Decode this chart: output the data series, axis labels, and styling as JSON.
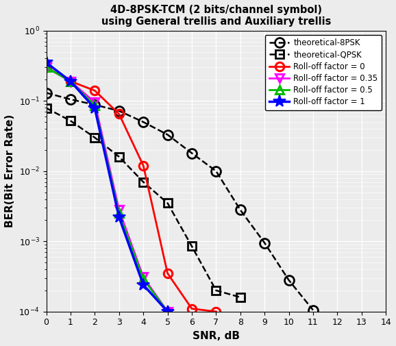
{
  "title_line1": "4D-8PSK-TCM (2 bits/channel symbol)",
  "title_line2": "using General trellis and Auxiliary trellis",
  "xlabel": "SNR, dB",
  "ylabel": "BER(Bit Error Rate)",
  "xlim": [
    0,
    14
  ],
  "theo_8psk_snr": [
    0,
    1,
    2,
    3,
    4,
    5,
    6,
    7,
    8,
    9,
    10,
    11
  ],
  "theo_8psk_ber": [
    0.13,
    0.105,
    0.088,
    0.072,
    0.05,
    0.033,
    0.018,
    0.01,
    0.0028,
    0.00095,
    0.00028,
    0.000105
  ],
  "theo_qpsk_snr": [
    0,
    1,
    2,
    3,
    4,
    5,
    6,
    7,
    8
  ],
  "theo_qpsk_ber": [
    0.079,
    0.052,
    0.03,
    0.016,
    0.007,
    0.0035,
    0.00085,
    0.0002,
    0.00016
  ],
  "rolloff0_snr": [
    0,
    1,
    2,
    3,
    4,
    5,
    6,
    7
  ],
  "rolloff0_ber": [
    0.3,
    0.19,
    0.14,
    0.065,
    0.012,
    0.00035,
    0.00011,
    0.0001
  ],
  "rolloff035_snr": [
    0,
    1,
    2,
    3,
    4,
    5
  ],
  "rolloff035_ber": [
    0.3,
    0.19,
    0.095,
    0.0028,
    0.00031,
    0.0001
  ],
  "rolloff05_snr": [
    0,
    1,
    2,
    3,
    4,
    5
  ],
  "rolloff05_ber": [
    0.3,
    0.19,
    0.086,
    0.0025,
    0.00029,
    0.0001
  ],
  "rolloff1_snr": [
    0,
    1,
    2,
    3,
    4,
    5
  ],
  "rolloff1_ber": [
    0.35,
    0.19,
    0.078,
    0.0022,
    0.00024,
    0.0001
  ],
  "color_theo8psk": "#000000",
  "color_theoqpsk": "#000000",
  "color_rolloff0": "#ff0000",
  "color_rolloff035": "#ff00ff",
  "color_rolloff05": "#00bb00",
  "color_rolloff1": "#0000ff",
  "bg_color": "#ececec",
  "grid_color": "#ffffff"
}
